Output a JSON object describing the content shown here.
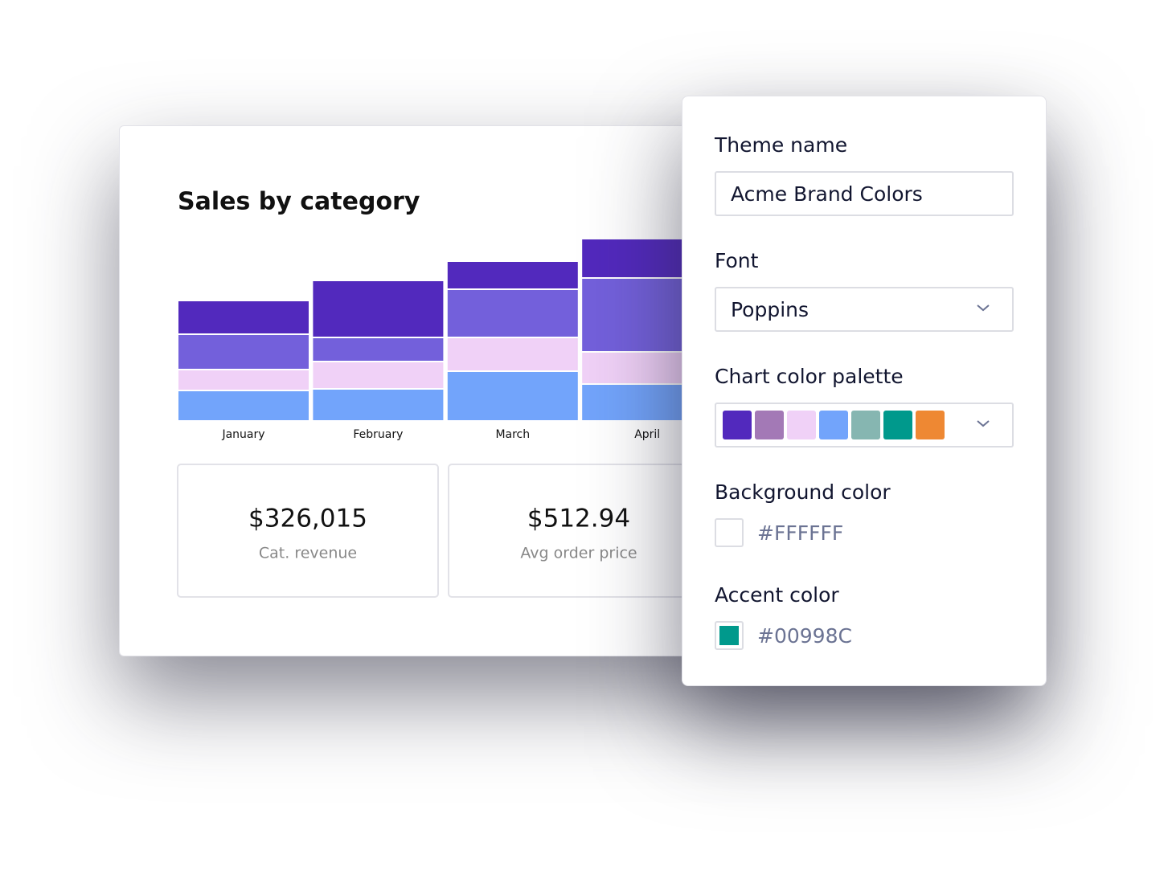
{
  "chart_data": {
    "type": "stacked-bar",
    "title": "Sales by category",
    "categories": [
      "January",
      "February",
      "March",
      "April"
    ],
    "series": [
      {
        "color": "#72A4FB",
        "values": [
          38,
          40,
          62,
          46
        ]
      },
      {
        "color": "#F0D1F7",
        "values": [
          26,
          34,
          42,
          40
        ]
      },
      {
        "color": "#7360DB",
        "values": [
          44,
          30,
          60,
          92
        ]
      },
      {
        "color": "#5229BD",
        "values": [
          42,
          71,
          35,
          49
        ]
      }
    ]
  },
  "kpis": [
    {
      "value": "$326,015",
      "label": "Cat. revenue"
    },
    {
      "value": "$512.94",
      "label": "Avg order price"
    }
  ],
  "theme_panel": {
    "theme_name_label": "Theme name",
    "theme_name": "Acme Brand Colors",
    "font_label": "Font",
    "font": "Poppins",
    "palette_label": "Chart color palette",
    "palette": [
      "#5229BD",
      "#A379B6",
      "#F0D1F7",
      "#72A4FB",
      "#86B6B1",
      "#00998C",
      "#EE8833"
    ],
    "background_label": "Background color",
    "background": "#FFFFFF",
    "accent_label": "Accent color",
    "accent": "#00998C"
  }
}
